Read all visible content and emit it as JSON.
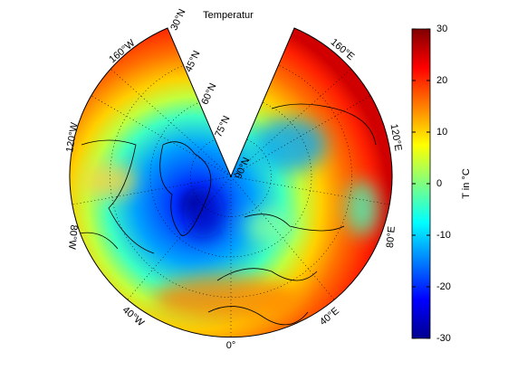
{
  "title": "Temperatur",
  "colorbar": {
    "label": "T in °C",
    "lim": [
      -30,
      30
    ],
    "ticks": [
      -30,
      -20,
      -10,
      0,
      10,
      20,
      30
    ],
    "colormap": "jet"
  },
  "lat_labels": [
    "30°N",
    "45°N",
    "60°N",
    "75°N",
    "90°N"
  ],
  "lon_labels": [
    "160°W",
    "120°W",
    "80°W",
    "40°W",
    "0°",
    "40°E",
    "80°E",
    "120°E",
    "160°E"
  ]
}
